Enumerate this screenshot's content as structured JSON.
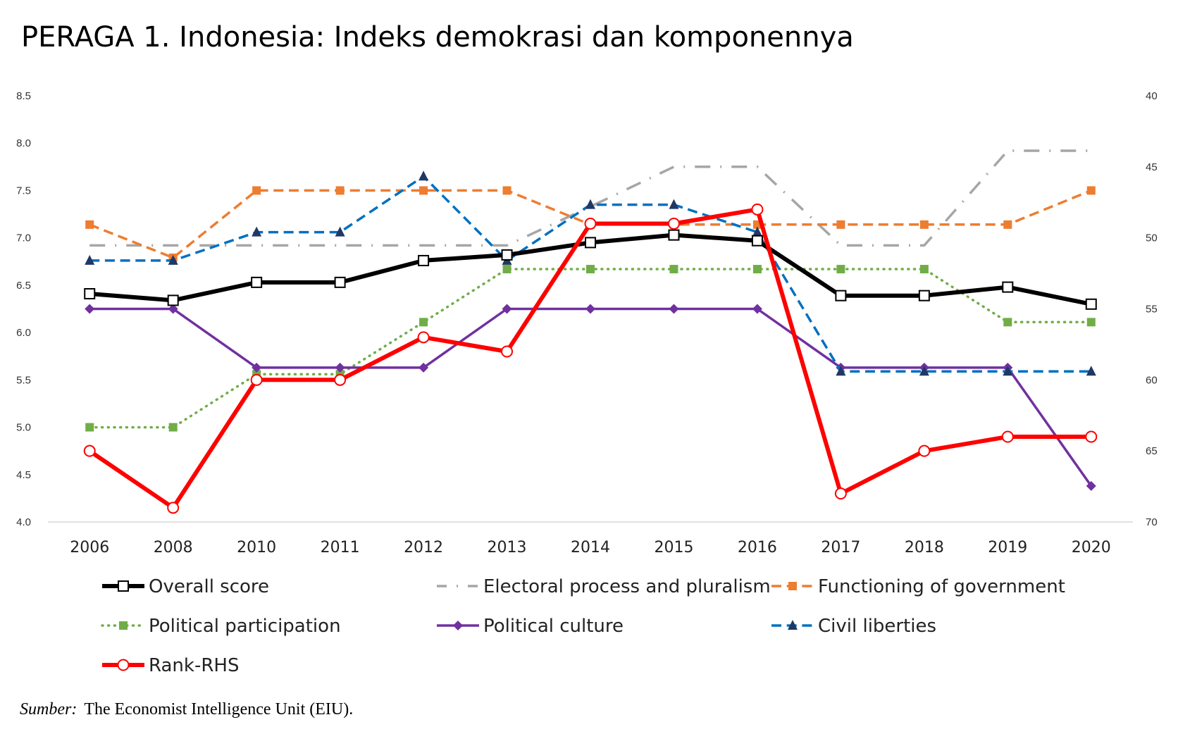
{
  "chart_data": {
    "type": "line",
    "title": "PERAGA 1. Indonesia: Indeks demokrasi dan komponennya",
    "categories": [
      "2006",
      "2008",
      "2010",
      "2011",
      "2012",
      "2013",
      "2014",
      "2015",
      "2016",
      "2017",
      "2018",
      "2019",
      "2020"
    ],
    "y_left": {
      "min": 4.0,
      "max": 8.5,
      "ticks": [
        "4.0",
        "4.5",
        "5.0",
        "5.5",
        "6.0",
        "6.5",
        "7.0",
        "7.5",
        "8.0",
        "8.5"
      ]
    },
    "y_right": {
      "min": 40,
      "max": 70,
      "inverted": true,
      "ticks": [
        "40",
        "45",
        "50",
        "55",
        "60",
        "65",
        "70"
      ]
    },
    "series": [
      {
        "name": "Electoral process and pluralism",
        "axis": "left",
        "color": "#a6a6a6",
        "dash": "dashdot",
        "marker": "none",
        "values": [
          6.92,
          6.92,
          6.92,
          6.92,
          6.92,
          6.92,
          7.33,
          7.75,
          7.75,
          6.92,
          6.92,
          7.92,
          7.92
        ]
      },
      {
        "name": "Functioning of government",
        "axis": "left",
        "color": "#ed7d31",
        "dash": "dashed",
        "marker": "square",
        "values": [
          7.14,
          6.79,
          7.5,
          7.5,
          7.5,
          7.5,
          7.14,
          7.14,
          7.14,
          7.14,
          7.14,
          7.14,
          7.5
        ]
      },
      {
        "name": "Political participation",
        "axis": "left",
        "color": "#70ad47",
        "dash": "dotted",
        "marker": "square",
        "values": [
          5.0,
          5.0,
          5.56,
          5.56,
          6.11,
          6.67,
          6.67,
          6.67,
          6.67,
          6.67,
          6.67,
          6.11,
          6.11
        ]
      },
      {
        "name": "Political culture",
        "axis": "left",
        "color": "#7030a0",
        "dash": "solid",
        "marker": "diamond",
        "values": [
          6.25,
          6.25,
          5.63,
          5.63,
          5.63,
          6.25,
          6.25,
          6.25,
          6.25,
          5.63,
          5.63,
          5.63,
          4.38
        ]
      },
      {
        "name": "Civil liberties",
        "axis": "left",
        "color": "#0070c0",
        "dash": "dashed",
        "marker": "triangle",
        "values": [
          6.76,
          6.76,
          7.06,
          7.06,
          7.65,
          6.76,
          7.35,
          7.35,
          7.06,
          5.59,
          5.59,
          5.59,
          5.59
        ]
      },
      {
        "name": "Overall score",
        "axis": "left",
        "color": "#000000",
        "dash": "solid",
        "marker": "square-open",
        "values": [
          6.41,
          6.34,
          6.53,
          6.53,
          6.76,
          6.82,
          6.95,
          7.03,
          6.97,
          6.39,
          6.39,
          6.48,
          6.3
        ]
      },
      {
        "name": "Rank-RHS",
        "axis": "right",
        "color": "#ff0000",
        "dash": "solid",
        "marker": "circle-open",
        "values": [
          65,
          69,
          60,
          60,
          57,
          58,
          49,
          49,
          48,
          68,
          65,
          64,
          64
        ]
      }
    ],
    "legend": {
      "placement": "bottom",
      "order": [
        "Overall score",
        "Electoral process and pluralism",
        "Functioning of government",
        "Political participation",
        "Political culture",
        "Civil liberties",
        "Rank-RHS"
      ]
    },
    "source_label": "Sumber:",
    "source_text": "The Economist Intelligence Unit (EIU)."
  }
}
